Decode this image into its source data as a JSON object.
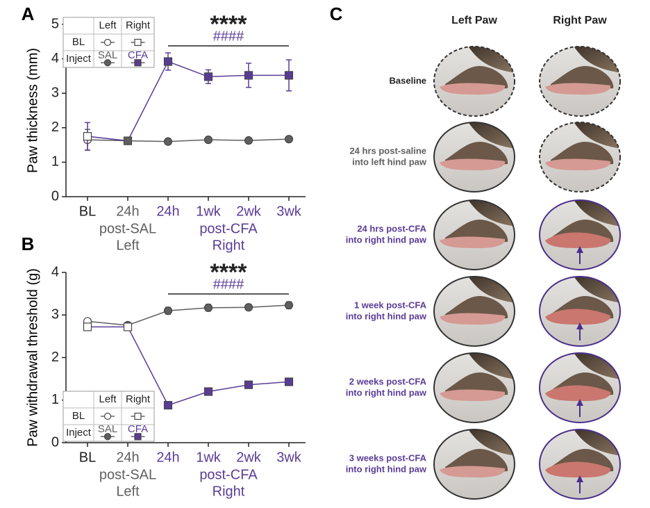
{
  "chart_data": [
    {
      "type": "line",
      "panel": "A",
      "ylabel": "Paw thickness (mm)",
      "categories": [
        "BL",
        "24h",
        "24h",
        "1wk",
        "2wk",
        "3wk"
      ],
      "category_colors": [
        "#222222",
        "#5f5f5f",
        "#5a3c96",
        "#5a3c96",
        "#5a3c96",
        "#5a3c96"
      ],
      "groups": [
        {
          "labels": [
            "post-SAL",
            "Left"
          ],
          "categories": [
            1
          ],
          "color": "#5f5f5f"
        },
        {
          "labels": [
            "post-CFA",
            "Right"
          ],
          "categories": [
            2,
            3,
            4,
            5
          ],
          "color": "#5a3c96"
        }
      ],
      "series": [
        {
          "name": "Left",
          "color": "#5f5f5f",
          "marker": "circle",
          "values": [
            1.65,
            1.62,
            1.6,
            1.65,
            1.63,
            1.67
          ],
          "errors": [
            0.3,
            0.08,
            0.05,
            0.08,
            0.06,
            0.05
          ],
          "marker_fills": [
            "#ffffff",
            "#5f5f5f",
            "#5f5f5f",
            "#5f5f5f",
            "#5f5f5f",
            "#5f5f5f"
          ]
        },
        {
          "name": "Right",
          "color": "#5a3c96",
          "marker": "square",
          "values": [
            1.75,
            1.62,
            3.92,
            3.48,
            3.52,
            3.52
          ],
          "errors": [
            0.4,
            0.1,
            0.25,
            0.2,
            0.35,
            0.45
          ],
          "marker_fills": [
            "#ffffff",
            "#5f5f5f",
            "#5a3c96",
            "#5a3c96",
            "#5a3c96",
            "#5a3c96"
          ]
        }
      ],
      "ylim": [
        0,
        5
      ],
      "yticks": [
        0,
        1,
        2,
        3,
        4,
        5
      ],
      "annotation": {
        "text": "****",
        "subtext": "####",
        "span": [
          2,
          5
        ]
      },
      "legend": {
        "rows": [
          "BL",
          "Inject"
        ],
        "inject_labels": [
          "SAL",
          "CFA"
        ]
      }
    },
    {
      "type": "line",
      "panel": "B",
      "ylabel": "Paw withdrawal threshold (g)",
      "categories": [
        "BL",
        "24h",
        "24h",
        "1wk",
        "2wk",
        "3wk"
      ],
      "category_colors": [
        "#222222",
        "#5f5f5f",
        "#5a3c96",
        "#5a3c96",
        "#5a3c96",
        "#5a3c96"
      ],
      "groups": [
        {
          "labels": [
            "post-SAL",
            "Left"
          ],
          "categories": [
            1
          ],
          "color": "#5f5f5f"
        },
        {
          "labels": [
            "post-CFA",
            "Right"
          ],
          "categories": [
            2,
            3,
            4,
            5
          ],
          "color": "#5a3c96"
        }
      ],
      "series": [
        {
          "name": "Left",
          "color": "#5f5f5f",
          "marker": "circle",
          "values": [
            2.85,
            2.76,
            3.1,
            3.17,
            3.18,
            3.23
          ],
          "errors": [
            0.05,
            0.05,
            0.08,
            0.08,
            0.07,
            0.08
          ],
          "marker_fills": [
            "#ffffff",
            "#5f5f5f",
            "#5f5f5f",
            "#5f5f5f",
            "#5f5f5f",
            "#5f5f5f"
          ]
        },
        {
          "name": "Right",
          "color": "#5a3c96",
          "marker": "square",
          "values": [
            2.72,
            2.72,
            0.88,
            1.2,
            1.36,
            1.43
          ],
          "errors": [
            0.08,
            0.06,
            0.05,
            0.05,
            0.04,
            0.04
          ],
          "marker_fills": [
            "#ffffff",
            "#ffffff",
            "#5a3c96",
            "#5a3c96",
            "#5a3c96",
            "#5a3c96"
          ]
        }
      ],
      "ylim": [
        0,
        4
      ],
      "yticks": [
        0,
        1,
        2,
        3,
        4
      ],
      "annotation": {
        "text": "****",
        "subtext": "####",
        "span": [
          2,
          5
        ]
      },
      "legend": {
        "rows": [
          "BL",
          "Inject"
        ],
        "inject_labels": [
          "SAL",
          "CFA"
        ]
      }
    }
  ],
  "panel_c": {
    "label": "C",
    "columns": [
      "Left Paw",
      "Right Paw"
    ],
    "rows": [
      {
        "label": [
          "Baseline"
        ],
        "color": "#222222"
      },
      {
        "label": [
          "24 hrs post-saline",
          "into left hind paw"
        ],
        "color": "#5f5f5f"
      },
      {
        "label": [
          "24 hrs post-CFA",
          "into right hind paw"
        ],
        "color": "#5a3c96"
      },
      {
        "label": [
          "1 week post-CFA",
          "into right hind paw"
        ],
        "color": "#5a3c96"
      },
      {
        "label": [
          "2 weeks post-CFA",
          "into right hind paw"
        ],
        "color": "#5a3c96"
      },
      {
        "label": [
          "3 weeks post-CFA",
          "into right hind paw"
        ],
        "color": "#5a3c96"
      }
    ]
  }
}
